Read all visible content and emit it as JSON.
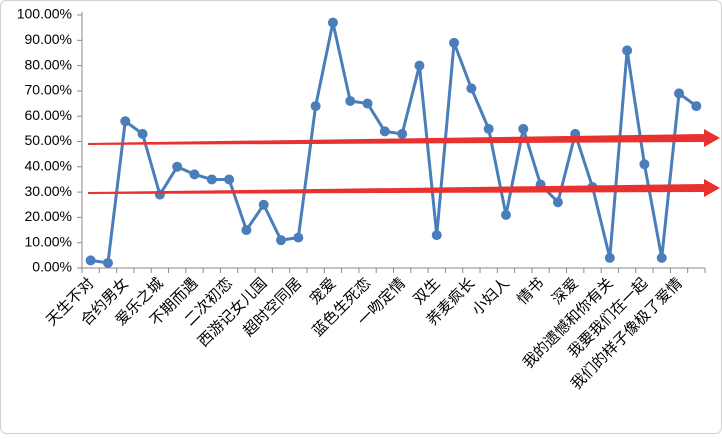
{
  "chart_data": {
    "type": "line",
    "categories": [
      "天生不对",
      null,
      "合约男女",
      null,
      "爱乐之城",
      null,
      "不期而遇",
      null,
      "二次初恋",
      null,
      "西游记女儿国",
      null,
      "超时空同居",
      null,
      "宠爱",
      null,
      "蓝色生死恋",
      null,
      "一吻定情",
      null,
      "双生",
      null,
      "荞麦疯长",
      null,
      "小妇人",
      null,
      "情书",
      null,
      "深爱",
      null,
      "我的遗憾和你有关",
      null,
      "我要我们在一起",
      null,
      "我们的样子像极了爱情",
      null
    ],
    "series": [
      {
        "color": "#4a7ebb",
        "values": [
          3,
          2,
          58,
          53,
          29,
          40,
          37,
          35,
          35,
          15,
          25,
          11,
          12,
          64,
          97,
          66,
          65,
          54,
          53,
          80,
          13,
          89,
          71,
          55,
          21,
          55,
          33,
          26,
          53,
          32,
          4,
          86,
          41,
          4,
          69,
          64
        ]
      }
    ],
    "ylim": [
      0,
      100
    ],
    "yticks": [
      {
        "value": 0,
        "label": "0.00%"
      },
      {
        "value": 10,
        "label": "10.00%"
      },
      {
        "value": 20,
        "label": "20.00%"
      },
      {
        "value": 30,
        "label": "30.00%"
      },
      {
        "value": 40,
        "label": "40.00%"
      },
      {
        "value": 50,
        "label": "50.00%"
      },
      {
        "value": 60,
        "label": "60.00%"
      },
      {
        "value": 70,
        "label": "70.00%"
      },
      {
        "value": 80,
        "label": "80.00%"
      },
      {
        "value": 90,
        "label": "90.00%"
      },
      {
        "value": 100,
        "label": "100.00%"
      }
    ],
    "grid": false
  }
}
